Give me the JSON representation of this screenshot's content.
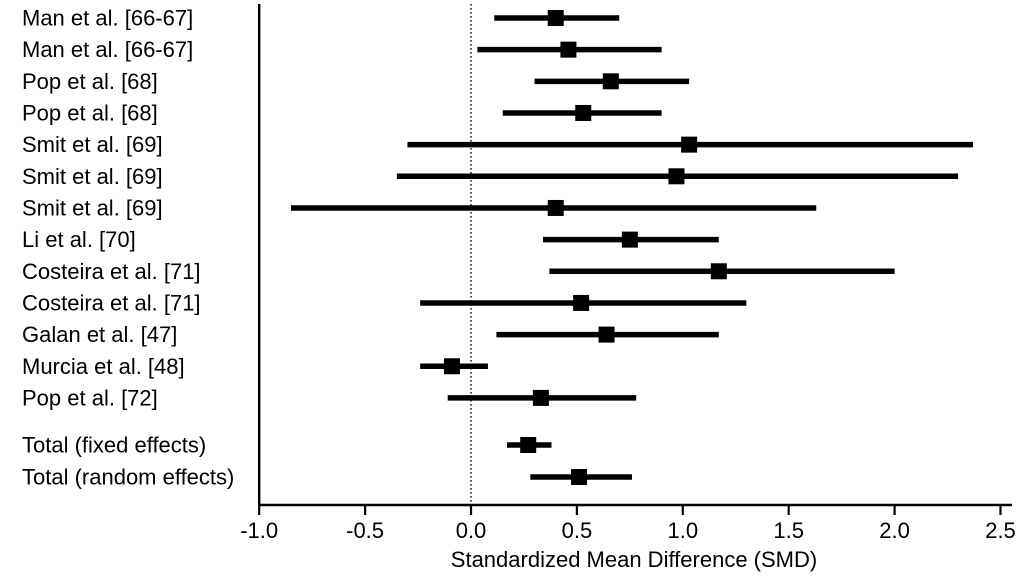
{
  "figure": {
    "background": "#ffffff",
    "ink": "#000000"
  },
  "chart_data": {
    "type": "scatter",
    "variant": "forest-plot",
    "title": "",
    "xlabel": "Standardized Mean Difference (SMD)",
    "ylabel": "",
    "xlim": [
      -1.05,
      2.55
    ],
    "x_ticks": [
      -1.0,
      -0.5,
      0.0,
      0.5,
      1.0,
      1.5,
      2.0,
      2.5
    ],
    "reference_line_x": 0.0,
    "grid": false,
    "legend": "none",
    "marker": "square",
    "studies": [
      {
        "label": "Man et al. [66-67]",
        "smd": 0.4,
        "ci_low": 0.11,
        "ci_high": 0.7
      },
      {
        "label": "Man et al. [66-67]",
        "smd": 0.46,
        "ci_low": 0.03,
        "ci_high": 0.9
      },
      {
        "label": "Pop et al. [68]",
        "smd": 0.66,
        "ci_low": 0.3,
        "ci_high": 1.03
      },
      {
        "label": "Pop et al. [68]",
        "smd": 0.53,
        "ci_low": 0.15,
        "ci_high": 0.9
      },
      {
        "label": "Smit et al. [69]",
        "smd": 1.03,
        "ci_low": -0.3,
        "ci_high": 2.37
      },
      {
        "label": "Smit et al. [69]",
        "smd": 0.97,
        "ci_low": -0.35,
        "ci_high": 2.3
      },
      {
        "label": "Smit et al. [69]",
        "smd": 0.4,
        "ci_low": -0.85,
        "ci_high": 1.63
      },
      {
        "label": "Li et al. [70]",
        "smd": 0.75,
        "ci_low": 0.34,
        "ci_high": 1.17
      },
      {
        "label": "Costeira et al. [71]",
        "smd": 1.17,
        "ci_low": 0.37,
        "ci_high": 2.0
      },
      {
        "label": "Costeira et al. [71]",
        "smd": 0.52,
        "ci_low": -0.24,
        "ci_high": 1.3
      },
      {
        "label": "Galan et al. [47]",
        "smd": 0.64,
        "ci_low": 0.12,
        "ci_high": 1.17
      },
      {
        "label": "Murcia et al. [48]",
        "smd": -0.09,
        "ci_low": -0.24,
        "ci_high": 0.08
      },
      {
        "label": "Pop et al. [72]",
        "smd": 0.33,
        "ci_low": -0.11,
        "ci_high": 0.78
      }
    ],
    "totals": [
      {
        "label": "Total (fixed effects)",
        "smd": 0.27,
        "ci_low": 0.17,
        "ci_high": 0.38
      },
      {
        "label": "Total (random effects)",
        "smd": 0.51,
        "ci_low": 0.28,
        "ci_high": 0.76
      }
    ]
  }
}
